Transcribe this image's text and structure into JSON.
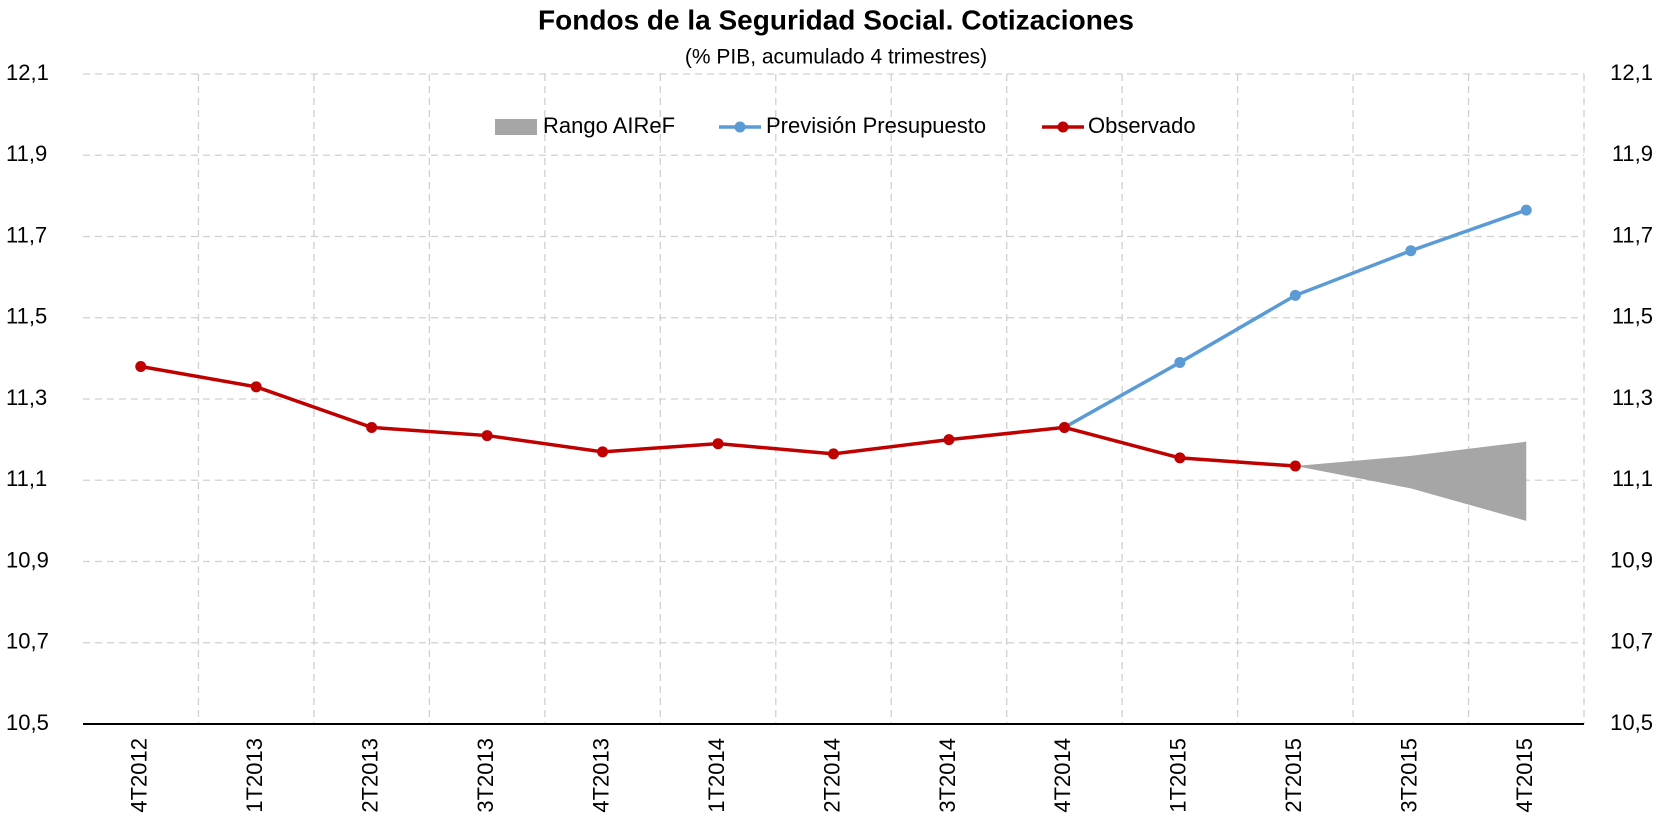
{
  "chart_data": {
    "type": "line",
    "title": "Fondos de la Seguridad Social. Cotizaciones",
    "subtitle": "(% PIB, acumulado 4 trimestres)",
    "categories": [
      "4T2012",
      "1T2013",
      "2T2013",
      "3T2013",
      "4T2013",
      "1T2014",
      "2T2014",
      "3T2014",
      "4T2014",
      "1T2015",
      "2T2015",
      "3T2015",
      "4T2015"
    ],
    "series": [
      {
        "name": "Rango AIReF",
        "type": "area",
        "color": "#a6a6a6",
        "upper": [
          null,
          null,
          null,
          null,
          null,
          null,
          null,
          null,
          null,
          null,
          11.135,
          11.16,
          11.195
        ],
        "lower": [
          null,
          null,
          null,
          null,
          null,
          null,
          null,
          null,
          null,
          null,
          11.135,
          11.08,
          11.0
        ]
      },
      {
        "name": "Previsión Presupuesto",
        "type": "line",
        "color": "#5b9bd5",
        "values": [
          null,
          null,
          null,
          null,
          null,
          null,
          null,
          null,
          11.23,
          11.39,
          11.555,
          11.665,
          11.765
        ]
      },
      {
        "name": "Observado",
        "type": "line",
        "color": "#c00000",
        "values": [
          11.38,
          11.33,
          11.23,
          11.21,
          11.17,
          11.19,
          11.165,
          11.2,
          11.23,
          11.155,
          11.135,
          null,
          null
        ]
      }
    ],
    "ylim": [
      10.5,
      12.1
    ],
    "yticks": [
      {
        "value": 10.5,
        "label": "10,5"
      },
      {
        "value": 10.7,
        "label": "10,7"
      },
      {
        "value": 10.9,
        "label": "10,9"
      },
      {
        "value": 11.1,
        "label": "11,1"
      },
      {
        "value": 11.3,
        "label": "11,3"
      },
      {
        "value": 11.5,
        "label": "11,5"
      },
      {
        "value": 11.7,
        "label": "11,7"
      },
      {
        "value": 11.9,
        "label": "11,9"
      },
      {
        "value": 12.1,
        "label": "12,1"
      }
    ],
    "y2lim": [
      10.5,
      12.1
    ],
    "y2ticks": [
      {
        "value": 10.5,
        "label": "10,5"
      },
      {
        "value": 10.7,
        "label": "10,7"
      },
      {
        "value": 10.9,
        "label": "10,9"
      },
      {
        "value": 11.1,
        "label": "11,1"
      },
      {
        "value": 11.3,
        "label": "11,3"
      },
      {
        "value": 11.5,
        "label": "11,5"
      },
      {
        "value": 11.7,
        "label": "11,7"
      },
      {
        "value": 11.9,
        "label": "11,9"
      },
      {
        "value": 12.1,
        "label": "12,1"
      }
    ],
    "grid": true
  }
}
